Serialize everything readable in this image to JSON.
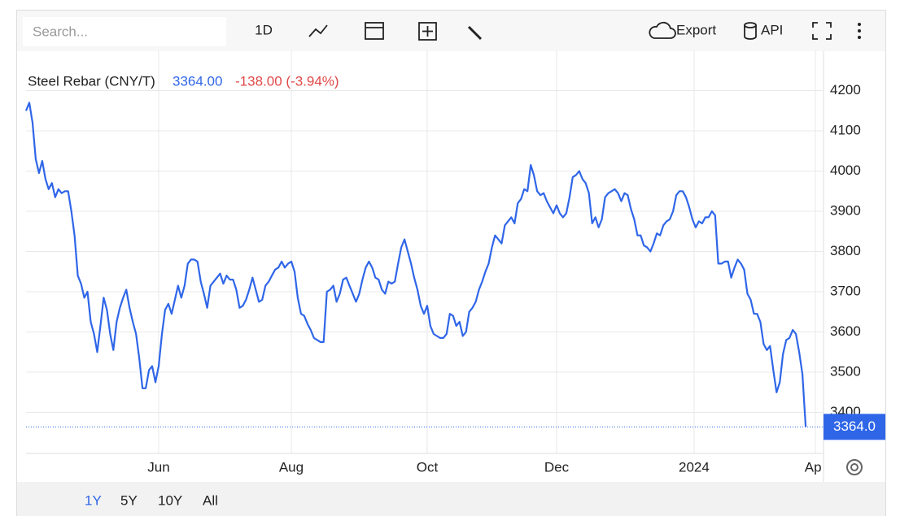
{
  "toolbar": {
    "search_placeholder": "Search...",
    "range": "1D",
    "export": "Export",
    "api": "API"
  },
  "footer": {
    "ranges": [
      "1Y",
      "5Y",
      "10Y",
      "All"
    ]
  },
  "chart_data": {
    "type": "line",
    "title": "Steel Rebar (CNY/T)",
    "price_label": "3364.00",
    "change_label": "-138.00 (-3.94%)",
    "badge_label": "3364.0",
    "series": [
      {
        "name": "Steel Rebar (CNY/T)",
        "color": "#2f66e8",
        "values": [
          4150,
          4170,
          4120,
          4030,
          3995,
          4025,
          3980,
          3955,
          3970,
          3935,
          3955,
          3945,
          3950,
          3950,
          3900,
          3840,
          3740,
          3720,
          3685,
          3700,
          3625,
          3595,
          3550,
          3615,
          3685,
          3655,
          3595,
          3555,
          3625,
          3660,
          3685,
          3705,
          3660,
          3625,
          3595,
          3535,
          3460,
          3460,
          3505,
          3515,
          3475,
          3515,
          3595,
          3655,
          3670,
          3645,
          3680,
          3715,
          3685,
          3715,
          3770,
          3780,
          3780,
          3775,
          3725,
          3695,
          3660,
          3715,
          3725,
          3735,
          3745,
          3720,
          3740,
          3730,
          3730,
          3705,
          3660,
          3665,
          3680,
          3705,
          3735,
          3705,
          3675,
          3680,
          3715,
          3725,
          3740,
          3755,
          3760,
          3775,
          3760,
          3770,
          3775,
          3750,
          3685,
          3645,
          3640,
          3620,
          3605,
          3585,
          3580,
          3575,
          3575,
          3700,
          3705,
          3715,
          3675,
          3695,
          3730,
          3735,
          3715,
          3695,
          3675,
          3695,
          3730,
          3760,
          3775,
          3760,
          3735,
          3730,
          3705,
          3695,
          3725,
          3720,
          3725,
          3770,
          3810,
          3830,
          3800,
          3770,
          3735,
          3705,
          3665,
          3645,
          3665,
          3615,
          3595,
          3590,
          3585,
          3585,
          3595,
          3645,
          3640,
          3615,
          3625,
          3590,
          3600,
          3650,
          3660,
          3675,
          3705,
          3725,
          3750,
          3770,
          3810,
          3840,
          3830,
          3820,
          3865,
          3875,
          3885,
          3870,
          3920,
          3930,
          3955,
          3950,
          4015,
          3990,
          3950,
          3940,
          3945,
          3925,
          3910,
          3895,
          3915,
          3895,
          3885,
          3895,
          3935,
          3985,
          3990,
          4000,
          3980,
          3970,
          3945,
          3870,
          3885,
          3860,
          3880,
          3935,
          3945,
          3950,
          3955,
          3945,
          3925,
          3945,
          3940,
          3905,
          3880,
          3840,
          3840,
          3815,
          3810,
          3800,
          3820,
          3845,
          3840,
          3865,
          3875,
          3880,
          3900,
          3940,
          3950,
          3950,
          3935,
          3910,
          3880,
          3860,
          3875,
          3870,
          3885,
          3885,
          3900,
          3890,
          3770,
          3770,
          3775,
          3775,
          3735,
          3760,
          3780,
          3770,
          3755,
          3695,
          3680,
          3645,
          3645,
          3625,
          3570,
          3555,
          3565,
          3505,
          3450,
          3475,
          3545,
          3580,
          3585,
          3605,
          3595,
          3550,
          3495,
          3364
        ]
      }
    ],
    "xlim": [
      0,
      244
    ],
    "xticks": [
      {
        "value": 41,
        "label": "Jun"
      },
      {
        "value": 82,
        "label": "Aug"
      },
      {
        "value": 124,
        "label": "Oct"
      },
      {
        "value": 164,
        "label": "Dec"
      },
      {
        "value": 206.5,
        "label": "2024"
      },
      {
        "value": 244,
        "label": "Apr"
      }
    ],
    "ylim": [
      3300,
      4300
    ],
    "yticks": [
      3400,
      3500,
      3600,
      3700,
      3800,
      3900,
      4000,
      4100,
      4200
    ],
    "grid": true
  }
}
